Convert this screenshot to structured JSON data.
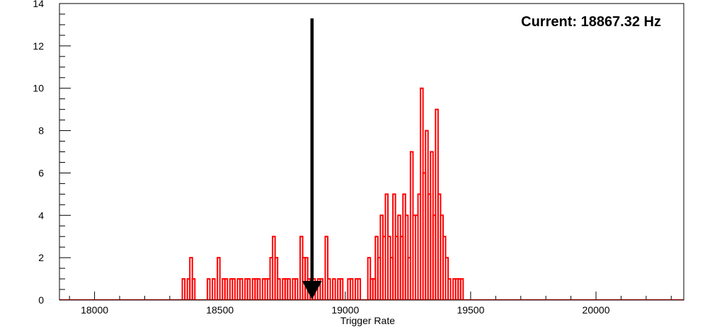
{
  "chart_data": {
    "type": "bar",
    "xlabel": "Trigger Rate",
    "ylabel": "",
    "xlim": [
      17860,
      20350
    ],
    "ylim": [
      0,
      14
    ],
    "x_ticks": [
      18000,
      18500,
      19000,
      19500,
      20000
    ],
    "y_ticks": [
      0,
      2,
      4,
      6,
      8,
      10,
      12,
      14
    ],
    "bin_width": 10,
    "line_color": "#ff0000",
    "annotation": "Current: 18867.32 Hz",
    "marker": {
      "x": 18867.32,
      "color": "#000000",
      "top_y": 13.3
    },
    "histogram": [
      [
        18355,
        1
      ],
      [
        18365,
        0
      ],
      [
        18375,
        1
      ],
      [
        18385,
        2
      ],
      [
        18395,
        1
      ],
      [
        18405,
        0
      ],
      [
        18415,
        0
      ],
      [
        18425,
        0
      ],
      [
        18435,
        0
      ],
      [
        18445,
        0
      ],
      [
        18455,
        1
      ],
      [
        18465,
        0
      ],
      [
        18475,
        1
      ],
      [
        18485,
        0
      ],
      [
        18495,
        2
      ],
      [
        18505,
        0
      ],
      [
        18515,
        1
      ],
      [
        18525,
        1
      ],
      [
        18535,
        0
      ],
      [
        18545,
        1
      ],
      [
        18555,
        1
      ],
      [
        18565,
        0
      ],
      [
        18575,
        1
      ],
      [
        18585,
        1
      ],
      [
        18595,
        0
      ],
      [
        18605,
        1
      ],
      [
        18615,
        1
      ],
      [
        18625,
        0
      ],
      [
        18635,
        1
      ],
      [
        18645,
        1
      ],
      [
        18655,
        1
      ],
      [
        18665,
        0
      ],
      [
        18675,
        1
      ],
      [
        18685,
        1
      ],
      [
        18695,
        1
      ],
      [
        18705,
        2
      ],
      [
        18715,
        3
      ],
      [
        18725,
        2
      ],
      [
        18735,
        1
      ],
      [
        18745,
        0
      ],
      [
        18755,
        1
      ],
      [
        18765,
        1
      ],
      [
        18775,
        1
      ],
      [
        18785,
        0
      ],
      [
        18795,
        1
      ],
      [
        18805,
        1
      ],
      [
        18815,
        0
      ],
      [
        18825,
        3
      ],
      [
        18835,
        2
      ],
      [
        18845,
        2
      ],
      [
        18855,
        1
      ],
      [
        18865,
        1
      ],
      [
        18875,
        1
      ],
      [
        18885,
        0
      ],
      [
        18895,
        1
      ],
      [
        18905,
        1
      ],
      [
        18915,
        0
      ],
      [
        18925,
        3
      ],
      [
        18935,
        1
      ],
      [
        18945,
        0
      ],
      [
        18955,
        1
      ],
      [
        18965,
        0
      ],
      [
        18975,
        1
      ],
      [
        18985,
        1
      ],
      [
        18995,
        0
      ],
      [
        19005,
        0
      ],
      [
        19015,
        1
      ],
      [
        19025,
        1
      ],
      [
        19035,
        0
      ],
      [
        19045,
        1
      ],
      [
        19055,
        1
      ],
      [
        19065,
        0
      ],
      [
        19075,
        0
      ],
      [
        19085,
        0
      ],
      [
        19095,
        2
      ],
      [
        19105,
        1
      ],
      [
        19115,
        1
      ],
      [
        19125,
        3
      ],
      [
        19135,
        2
      ],
      [
        19145,
        4
      ],
      [
        19155,
        3
      ],
      [
        19165,
        5
      ],
      [
        19175,
        3
      ],
      [
        19185,
        2
      ],
      [
        19195,
        5
      ],
      [
        19205,
        3
      ],
      [
        19215,
        4
      ],
      [
        19225,
        3
      ],
      [
        19235,
        5
      ],
      [
        19245,
        4
      ],
      [
        19255,
        2
      ],
      [
        19265,
        7
      ],
      [
        19275,
        4
      ],
      [
        19285,
        4
      ],
      [
        19295,
        5
      ],
      [
        19305,
        10
      ],
      [
        19315,
        6
      ],
      [
        19325,
        8
      ],
      [
        19335,
        5
      ],
      [
        19345,
        7
      ],
      [
        19355,
        4
      ],
      [
        19365,
        9
      ],
      [
        19375,
        5
      ],
      [
        19385,
        4
      ],
      [
        19395,
        3
      ],
      [
        19405,
        2
      ],
      [
        19415,
        1
      ],
      [
        19425,
        0
      ],
      [
        19435,
        1
      ],
      [
        19445,
        1
      ],
      [
        19455,
        1
      ],
      [
        19465,
        1
      ],
      [
        19475,
        0
      ]
    ]
  }
}
